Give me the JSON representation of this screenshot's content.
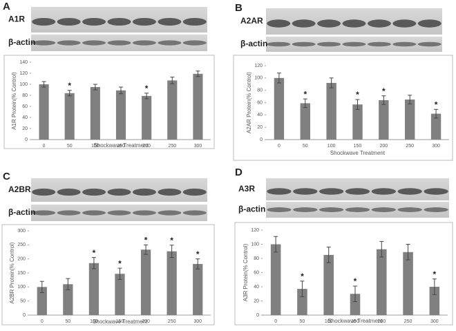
{
  "chart_data": [
    {
      "type": "bar",
      "panel_label": "A",
      "blot_labels": [
        "A1R",
        "β-actin"
      ],
      "x_label": "Shockwave Treatment",
      "y_label": "A1R Protein(% Control)",
      "categories": [
        "0",
        "50",
        "100",
        "150",
        "200",
        "250",
        "300"
      ],
      "values": [
        100,
        84,
        95,
        89,
        79,
        107,
        119
      ],
      "errors": [
        5,
        5,
        5,
        6,
        5,
        6,
        5
      ],
      "significance": [
        null,
        "*",
        null,
        null,
        "*",
        null,
        null
      ],
      "color": "#808080",
      "ylim": [
        0,
        140
      ],
      "yticks": [
        0,
        20,
        40,
        60,
        80,
        100,
        120,
        140
      ]
    },
    {
      "type": "bar",
      "panel_label": "B",
      "blot_labels": [
        "A2AR",
        "β-actin"
      ],
      "x_label": "Shockwave Treatment",
      "y_label": "A2AR Protein(% Control)",
      "categories": [
        "0",
        "50",
        "100",
        "150",
        "200",
        "250",
        "300"
      ],
      "values": [
        100,
        59,
        92,
        57,
        64,
        65,
        42
      ],
      "errors": [
        8,
        7,
        8,
        8,
        7,
        7,
        7
      ],
      "significance": [
        null,
        "*",
        null,
        "*",
        "*",
        null,
        "*"
      ],
      "color": "#808080",
      "ylim": [
        0,
        120
      ],
      "yticks": [
        0,
        20,
        40,
        60,
        80,
        100,
        120
      ]
    },
    {
      "type": "bar",
      "panel_label": "C",
      "blot_labels": [
        "A2BR",
        "β-actin"
      ],
      "x_label": "Shockwave Treatment",
      "y_label": "A2BR Protein(% Control)",
      "categories": [
        "0",
        "50",
        "100",
        "150",
        "200",
        "250",
        "300"
      ],
      "values": [
        100,
        110,
        185,
        147,
        233,
        227,
        182
      ],
      "errors": [
        20,
        20,
        20,
        20,
        17,
        22,
        18
      ],
      "significance": [
        null,
        null,
        "*",
        "*",
        "*",
        "*",
        "*"
      ],
      "color": "#808080",
      "ylim": [
        0,
        300
      ],
      "yticks": [
        0,
        50,
        100,
        150,
        200,
        250,
        300
      ]
    },
    {
      "type": "bar",
      "panel_label": "D",
      "blot_labels": [
        "A3R",
        "β-actin"
      ],
      "x_label": "Shockwave Treatment",
      "y_label": "A3R Protein(% Control)",
      "categories": [
        "0",
        "50",
        "100",
        "150",
        "200",
        "250",
        "300"
      ],
      "values": [
        100,
        37,
        85,
        30,
        93,
        89,
        40
      ],
      "errors": [
        11,
        11,
        11,
        11,
        11,
        11,
        11
      ],
      "significance": [
        null,
        "*",
        null,
        "*",
        null,
        null,
        "*"
      ],
      "color": "#808080",
      "ylim": [
        0,
        120
      ],
      "yticks": [
        0,
        20,
        40,
        60,
        80,
        100,
        120
      ]
    }
  ]
}
